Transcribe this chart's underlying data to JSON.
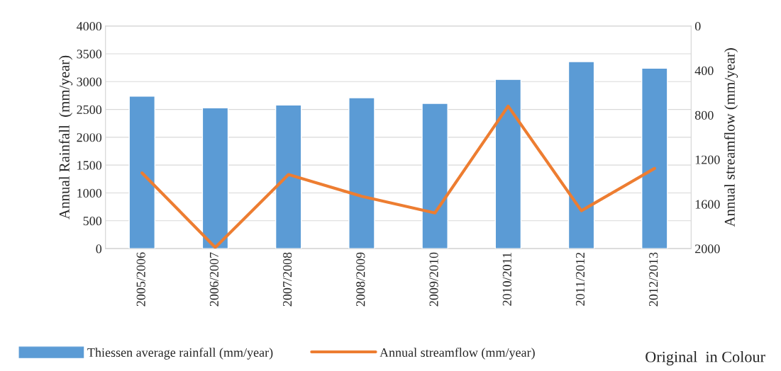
{
  "chart_data": {
    "type": "bar",
    "categories": [
      "2005/2006",
      "2006/2007",
      "2007/2008",
      "2008/2009",
      "2009/2010",
      "2010/2011",
      "2011/2012",
      "2012/2013"
    ],
    "series": [
      {
        "name": "Thiessen average rainfall (mm/year)",
        "color": "#5b9bd5",
        "values": [
          2740,
          2530,
          2580,
          2710,
          2610,
          3040,
          3360,
          3240
        ]
      },
      {
        "name": "Annual streamflow (mm/year)",
        "type": "line",
        "axis": "y2",
        "color": "#ed7d31",
        "values": [
          1320,
          1990,
          1335,
          1530,
          1680,
          720,
          1660,
          1280
        ]
      }
    ],
    "ylabel": "Annual Rainfall  (mm/year)",
    "y2label": "Annual streamflow (mm/year)",
    "ylim": [
      0,
      4000
    ],
    "yticks": [
      0,
      500,
      1000,
      1500,
      2000,
      2500,
      3000,
      3500,
      4000
    ],
    "y2lim": [
      2000,
      0
    ],
    "y2ticks": [
      0,
      400,
      800,
      1200,
      1600,
      2000
    ],
    "grid": "y",
    "legend": "bottom",
    "annotations": [
      "Original  in Colour"
    ]
  }
}
